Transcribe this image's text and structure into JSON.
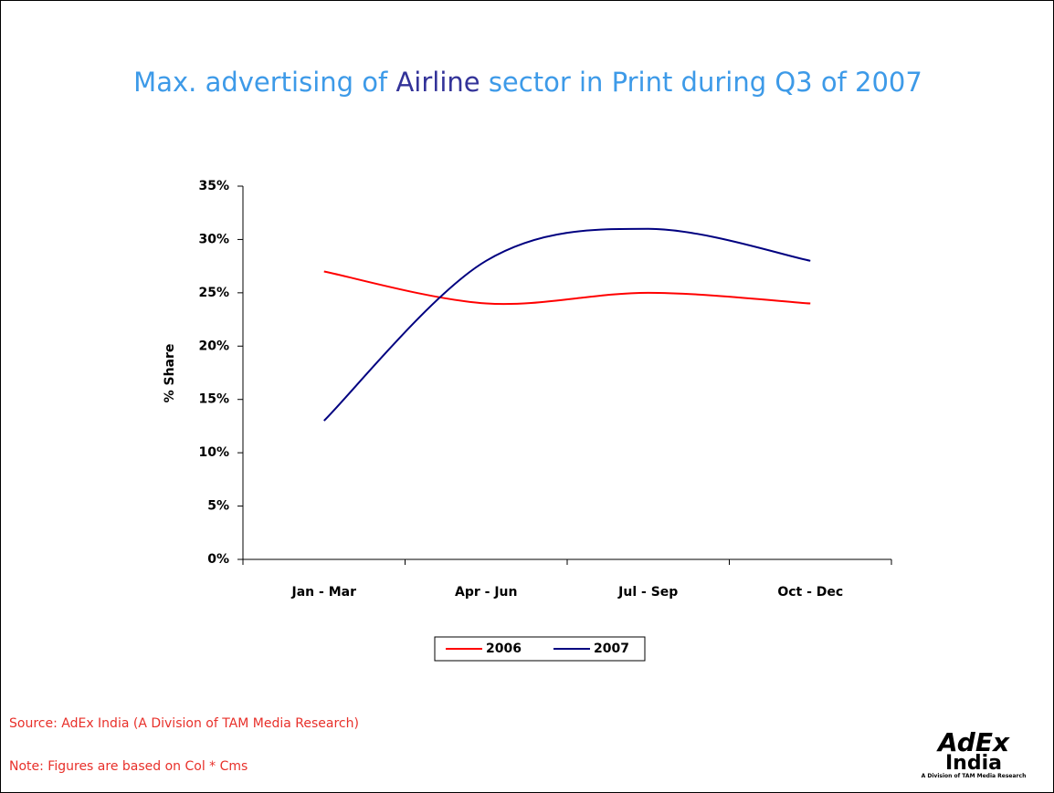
{
  "chart_data": {
    "type": "line",
    "title": [
      "Max. advertising of",
      "Airline",
      "sector in Print during Q3 of 2007"
    ],
    "y_label": "% Share",
    "categories": [
      "Jan - Mar",
      "Apr - Jun",
      "Jul - Sep",
      "Oct - Dec"
    ],
    "series": [
      {
        "name": "2006",
        "color": "#ff0000",
        "values": [
          27,
          24,
          25,
          24
        ]
      },
      {
        "name": "2007",
        "color": "#000080",
        "values": [
          13,
          28,
          31,
          28
        ]
      }
    ],
    "ylim": [
      0,
      35
    ],
    "yticks": [
      {
        "value": 0,
        "label": "0%"
      },
      {
        "value": 5,
        "label": "5%"
      },
      {
        "value": 10,
        "label": "10%"
      },
      {
        "value": 15,
        "label": "15%"
      },
      {
        "value": 20,
        "label": "20%"
      },
      {
        "value": 25,
        "label": "25%"
      },
      {
        "value": 30,
        "label": "30%"
      },
      {
        "value": 35,
        "label": "35%"
      }
    ],
    "grid": false,
    "smooth": true,
    "legend": "bottom"
  },
  "notes": [
    "Source: AdEx India (A Division of TAM Media Research)",
    "Note: Figures are based on Col * Cms"
  ],
  "logo": {
    "name": "AdEx",
    "sub": "India",
    "tagline": "A Division of TAM Media Research"
  }
}
